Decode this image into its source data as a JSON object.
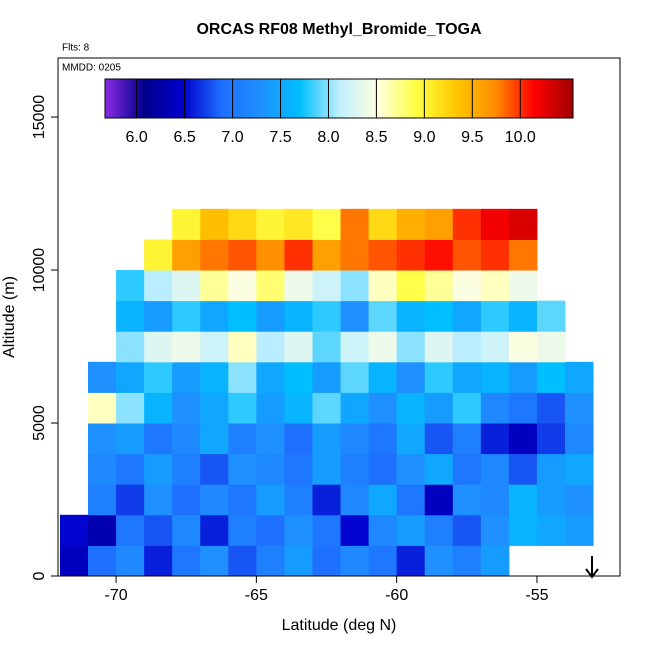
{
  "chart_data": {
    "type": "heatmap",
    "title": "ORCAS RF08 Methyl_Bromide_TOGA",
    "subtitle": "Flts: 8",
    "annotation": "MMDD: 0205",
    "xlabel": "Latitude (deg N)",
    "ylabel": "Altitude (m)",
    "xlim": [
      -72.07,
      -52.04
    ],
    "ylim": [
      0,
      16930
    ],
    "xticks": [
      -70,
      -65,
      -60,
      -55
    ],
    "yticks": [
      0,
      5000,
      10000,
      15000
    ],
    "x_bins": [
      -72,
      -71,
      -70,
      -69,
      -68,
      -67,
      -66,
      -65,
      -64,
      -63,
      -62,
      -61,
      -60,
      -59,
      -58,
      -57,
      -56,
      -55,
      -54,
      -53
    ],
    "y_bins": [
      0,
      1000,
      2000,
      3000,
      4000,
      5000,
      6000,
      7000,
      8000,
      9000,
      10000,
      11000,
      12000
    ],
    "clim": [
      5.67,
      10.55
    ],
    "cticks": [
      {
        "value": 6,
        "label": "6.0"
      },
      {
        "value": 6.5,
        "label": "6.5"
      },
      {
        "value": 7,
        "label": "7.0"
      },
      {
        "value": 7.5,
        "label": "7.5"
      },
      {
        "value": 8,
        "label": "8.0"
      },
      {
        "value": 8.5,
        "label": "8.5"
      },
      {
        "value": 9,
        "label": "9.0"
      },
      {
        "value": 9.5,
        "label": "9.5"
      },
      {
        "value": 10,
        "label": "10.0"
      }
    ],
    "colors": [
      "#8a2be2",
      "#00008b",
      "#0000cd",
      "#1e6fff",
      "#1e90ff",
      "#00bfff",
      "#bfefff",
      "#ffffe0",
      "#ffff40",
      "#ffc800",
      "#ff8c00",
      "#ff0000",
      "#a00000"
    ],
    "values": [
      [
        6.4,
        6.9,
        7.2,
        6.6,
        7.0,
        7.3,
        6.8,
        7.1,
        7.4,
        6.9,
        7.2,
        7.0,
        6.6,
        7.3,
        7.1,
        7.4,
        null,
        null,
        null
      ],
      [
        6.5,
        6.3,
        7.0,
        6.8,
        7.2,
        6.6,
        7.1,
        6.9,
        7.3,
        7.0,
        6.5,
        7.2,
        7.4,
        7.1,
        6.8,
        7.3,
        7.6,
        7.5,
        7.4
      ],
      [
        null,
        7.1,
        6.7,
        7.3,
        6.9,
        7.2,
        7.0,
        7.4,
        7.1,
        6.6,
        7.2,
        7.5,
        7.0,
        6.4,
        7.3,
        7.2,
        7.6,
        7.4,
        7.3
      ],
      [
        null,
        7.2,
        7.0,
        7.4,
        7.1,
        6.8,
        7.3,
        7.2,
        7.0,
        7.4,
        7.1,
        6.9,
        7.3,
        7.5,
        7.0,
        7.2,
        6.8,
        7.4,
        7.5
      ],
      [
        null,
        7.3,
        7.4,
        7.0,
        7.2,
        7.5,
        7.1,
        7.3,
        6.9,
        7.4,
        7.2,
        7.0,
        7.5,
        6.8,
        7.1,
        6.6,
        6.4,
        6.7,
        7.2
      ],
      [
        null,
        8.6,
        8.0,
        7.6,
        7.3,
        7.5,
        7.8,
        7.4,
        7.6,
        7.9,
        7.5,
        7.3,
        7.6,
        7.4,
        7.8,
        7.2,
        7.0,
        6.8,
        7.3
      ],
      [
        null,
        7.3,
        7.5,
        7.8,
        7.4,
        7.6,
        8.0,
        7.5,
        7.7,
        7.4,
        7.9,
        7.6,
        7.3,
        7.8,
        7.5,
        7.6,
        7.4,
        7.7,
        7.5
      ],
      [
        null,
        null,
        8.0,
        8.3,
        8.4,
        8.2,
        8.6,
        8.1,
        8.3,
        7.9,
        8.2,
        8.4,
        8.0,
        8.3,
        8.1,
        8.2,
        8.5,
        8.4,
        null
      ],
      [
        null,
        null,
        7.6,
        7.4,
        7.8,
        7.5,
        7.7,
        7.4,
        7.6,
        7.8,
        7.3,
        7.9,
        7.6,
        7.7,
        7.5,
        7.8,
        7.6,
        7.9,
        null
      ],
      [
        null,
        null,
        7.8,
        8.1,
        8.3,
        8.7,
        8.5,
        8.8,
        8.4,
        8.2,
        8.0,
        8.6,
        8.9,
        8.7,
        8.5,
        8.6,
        8.4,
        null,
        null
      ],
      [
        null,
        null,
        null,
        9.0,
        9.6,
        9.8,
        9.9,
        9.7,
        10.0,
        9.6,
        9.8,
        9.9,
        10.0,
        10.1,
        9.9,
        10.0,
        9.8,
        null,
        null
      ],
      [
        null,
        null,
        null,
        null,
        9.0,
        9.4,
        9.2,
        9.0,
        9.1,
        8.9,
        9.8,
        9.2,
        9.5,
        9.6,
        10.0,
        10.2,
        10.3,
        null,
        null
      ]
    ]
  }
}
